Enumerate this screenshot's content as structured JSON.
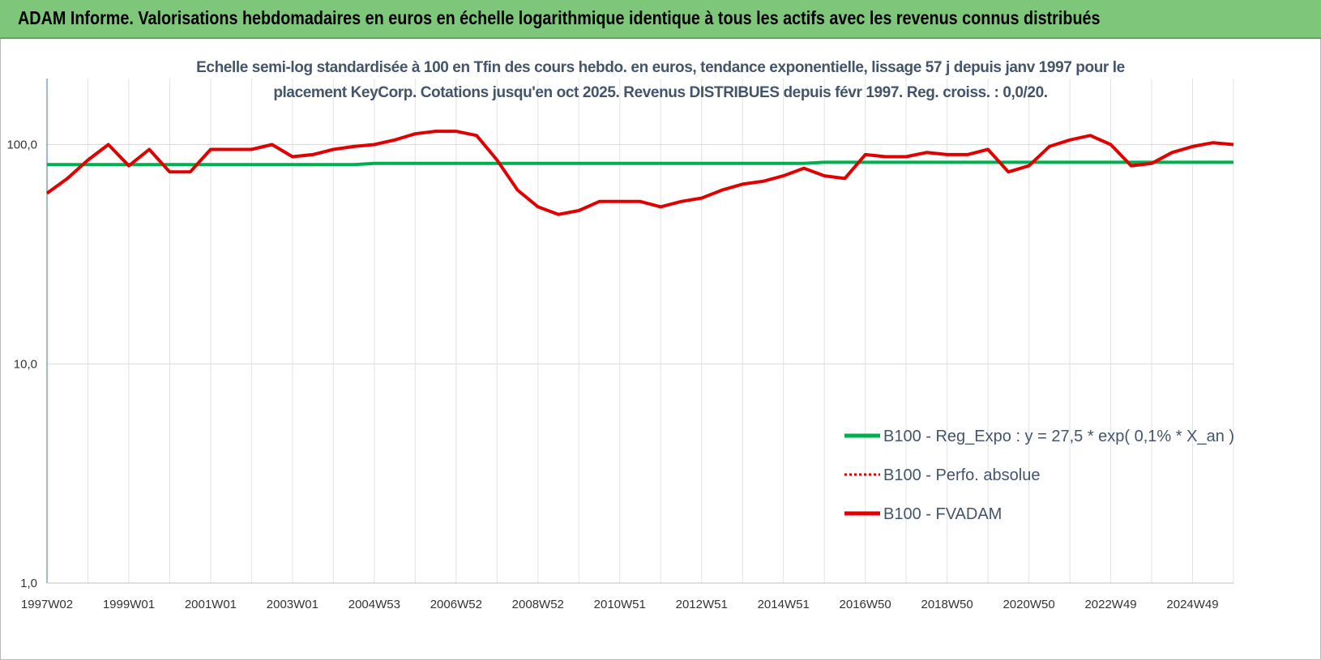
{
  "header": {
    "title": "ADAM Informe. Valorisations hebdomadaires en euros en échelle logarithmique identique à tous les actifs avec les revenus connus distribués"
  },
  "chart_data": {
    "type": "line",
    "title": "Echelle semi-log standardisée à 100 en Tfin des cours hebdo. en euros, tendance exponentielle, lissage 57 j depuis janv 1997 pour le placement KeyCorp. Cotations jusqu'en oct 2025. Revenus DISTRIBUES depuis févr 1997. Reg. croiss. : 0,0/20.",
    "yscale": "log",
    "grid": true,
    "legend": "lower-right",
    "ylim": [
      1,
      200
    ],
    "yticks": [
      {
        "value": 1,
        "label": "1,0"
      },
      {
        "value": 10,
        "label": "10,0"
      },
      {
        "value": 100,
        "label": "100,0"
      }
    ],
    "categories": [
      "1997W02",
      null,
      null,
      null,
      "1999W01",
      null,
      null,
      null,
      "2001W01",
      null,
      null,
      null,
      "2003W01",
      null,
      null,
      null,
      "2004W53",
      null,
      null,
      null,
      "2006W52",
      null,
      null,
      null,
      "2008W52",
      null,
      null,
      null,
      "2010W51",
      null,
      null,
      null,
      "2012W51",
      null,
      null,
      null,
      "2014W51",
      null,
      null,
      null,
      "2016W50",
      null,
      null,
      null,
      "2018W50",
      null,
      null,
      null,
      "2020W50",
      null,
      null,
      null,
      "2022W49",
      null,
      null,
      null,
      "2024W49",
      null,
      null
    ],
    "series": [
      {
        "name": "B100 - Reg_Expo : y = 27,5 * exp( 0,1% *  X_an )",
        "color": "#00b050",
        "style": "solid",
        "values": [
          81,
          81,
          81,
          81,
          81,
          81,
          81,
          81,
          81,
          81,
          81,
          81,
          81,
          81,
          81,
          81,
          82,
          82,
          82,
          82,
          82,
          82,
          82,
          82,
          82,
          82,
          82,
          82,
          82,
          82,
          82,
          82,
          82,
          82,
          82,
          82,
          82,
          82,
          83,
          83,
          83,
          83,
          83,
          83,
          83,
          83,
          83,
          83,
          83,
          83,
          83,
          83,
          83,
          83,
          83,
          83,
          83,
          83,
          83
        ]
      },
      {
        "name": "B100 - Perfo. absolue",
        "color": "#e00000",
        "style": "dotted",
        "values": [
          60,
          70,
          85,
          100,
          80,
          95,
          75,
          75,
          95,
          95,
          95,
          100,
          88,
          90,
          95,
          98,
          100,
          105,
          112,
          115,
          115,
          110,
          85,
          62,
          52,
          48,
          50,
          55,
          55,
          55,
          52,
          55,
          57,
          62,
          66,
          68,
          72,
          78,
          72,
          70,
          90,
          88,
          88,
          92,
          90,
          90,
          95,
          75,
          80,
          98,
          105,
          110,
          100,
          80,
          82,
          92,
          98,
          102,
          100
        ]
      },
      {
        "name": "B100 - FVADAM",
        "color": "#e00000",
        "style": "solid",
        "values": [
          60,
          70,
          85,
          100,
          80,
          95,
          75,
          75,
          95,
          95,
          95,
          100,
          88,
          90,
          95,
          98,
          100,
          105,
          112,
          115,
          115,
          110,
          85,
          62,
          52,
          48,
          50,
          55,
          55,
          55,
          52,
          55,
          57,
          62,
          66,
          68,
          72,
          78,
          72,
          70,
          90,
          88,
          88,
          92,
          90,
          90,
          95,
          75,
          80,
          98,
          105,
          110,
          100,
          80,
          82,
          92,
          98,
          102,
          100
        ]
      }
    ]
  }
}
